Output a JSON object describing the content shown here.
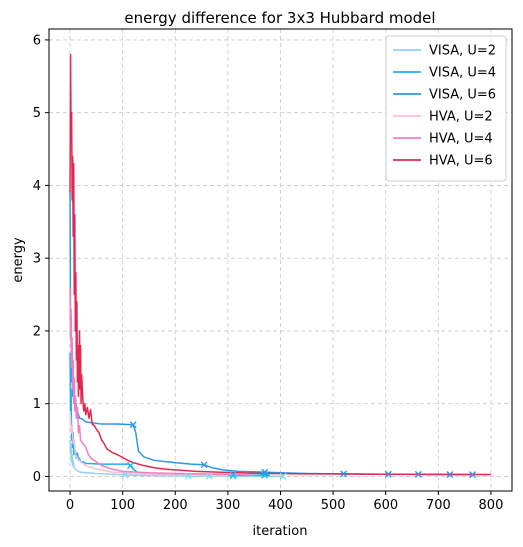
{
  "chart_data": {
    "type": "line",
    "title": "energy difference for 3x3 Hubbard model",
    "xlabel": "iteration",
    "ylabel": "energy",
    "xlim": [
      -40,
      840
    ],
    "ylim": [
      -0.2,
      6.15
    ],
    "xticks": [
      0,
      100,
      200,
      300,
      400,
      500,
      600,
      700,
      800
    ],
    "yticks": [
      0,
      1,
      2,
      3,
      4,
      5,
      6
    ],
    "grid": true,
    "legend_position": "top-right",
    "series": [
      {
        "name": "VISA, U=2",
        "color": "#8fd3f2",
        "points": [
          [
            0,
            0.5
          ],
          [
            1,
            0.3
          ],
          [
            2,
            0.45
          ],
          [
            3,
            0.2
          ],
          [
            4,
            0.3
          ],
          [
            5,
            0.15
          ],
          [
            6,
            0.22
          ],
          [
            8,
            0.12
          ],
          [
            10,
            0.1
          ],
          [
            15,
            0.07
          ],
          [
            20,
            0.06
          ],
          [
            30,
            0.05
          ],
          [
            50,
            0.04
          ],
          [
            80,
            0.03
          ],
          [
            105,
            0.02
          ],
          [
            130,
            0.015
          ],
          [
            180,
            0.01
          ],
          [
            225,
            0.005
          ],
          [
            265,
            0.004
          ],
          [
            310,
            0.003
          ],
          [
            405,
            0.002
          ]
        ],
        "markers": [
          [
            105,
            0.02
          ],
          [
            225,
            0.005
          ],
          [
            265,
            0.004
          ],
          [
            310,
            0.003
          ],
          [
            405,
            0.002
          ]
        ]
      },
      {
        "name": "VISA, U=4",
        "color": "#1fb0f2",
        "points": [
          [
            0,
            1.7
          ],
          [
            1,
            0.8
          ],
          [
            2,
            1.2
          ],
          [
            3,
            0.5
          ],
          [
            4,
            0.7
          ],
          [
            5,
            0.4
          ],
          [
            6,
            0.6
          ],
          [
            7,
            0.3
          ],
          [
            8,
            0.45
          ],
          [
            9,
            0.3
          ],
          [
            10,
            0.35
          ],
          [
            12,
            0.25
          ],
          [
            14,
            0.32
          ],
          [
            16,
            0.22
          ],
          [
            18,
            0.25
          ],
          [
            20,
            0.2
          ],
          [
            25,
            0.2
          ],
          [
            30,
            0.18
          ],
          [
            60,
            0.17
          ],
          [
            110,
            0.17
          ],
          [
            115,
            0.15
          ],
          [
            120,
            0.1
          ],
          [
            130,
            0.05
          ],
          [
            160,
            0.035
          ],
          [
            200,
            0.03
          ],
          [
            250,
            0.025
          ],
          [
            310,
            0.02
          ],
          [
            370,
            0.018
          ],
          [
            380,
            0.015
          ]
        ],
        "markers": [
          [
            115,
            0.15
          ],
          [
            310,
            0.02
          ],
          [
            370,
            0.018
          ]
        ]
      },
      {
        "name": "VISA, U=6",
        "color": "#2f96e8",
        "points": [
          [
            0,
            3.9
          ],
          [
            1,
            1.9
          ],
          [
            2,
            2.2
          ],
          [
            3,
            1.3
          ],
          [
            4,
            1.5
          ],
          [
            5,
            1.1
          ],
          [
            6,
            1.2
          ],
          [
            7,
            1.05
          ],
          [
            8,
            1.15
          ],
          [
            9,
            1.0
          ],
          [
            10,
            1.1
          ],
          [
            12,
            0.95
          ],
          [
            14,
            0.9
          ],
          [
            16,
            0.85
          ],
          [
            18,
            0.8
          ],
          [
            20,
            0.8
          ],
          [
            25,
            0.78
          ],
          [
            30,
            0.75
          ],
          [
            40,
            0.74
          ],
          [
            60,
            0.72
          ],
          [
            90,
            0.72
          ],
          [
            120,
            0.71
          ],
          [
            125,
            0.6
          ],
          [
            130,
            0.35
          ],
          [
            140,
            0.27
          ],
          [
            160,
            0.22
          ],
          [
            200,
            0.19
          ],
          [
            230,
            0.17
          ],
          [
            255,
            0.16
          ],
          [
            270,
            0.12
          ],
          [
            290,
            0.09
          ],
          [
            320,
            0.07
          ],
          [
            370,
            0.06
          ],
          [
            400,
            0.05
          ],
          [
            450,
            0.04
          ],
          [
            520,
            0.035
          ],
          [
            600,
            0.03
          ],
          [
            660,
            0.028
          ],
          [
            720,
            0.026
          ],
          [
            765,
            0.025
          ]
        ],
        "markers": [
          [
            120,
            0.71
          ],
          [
            255,
            0.16
          ],
          [
            370,
            0.06
          ],
          [
            520,
            0.035
          ],
          [
            605,
            0.03
          ],
          [
            662,
            0.028
          ],
          [
            722,
            0.026
          ],
          [
            765,
            0.025
          ]
        ]
      },
      {
        "name": "HVA, U=2",
        "color": "#f9c0cf",
        "points": [
          [
            0,
            0.9
          ],
          [
            2,
            0.6
          ],
          [
            4,
            0.7
          ],
          [
            6,
            0.45
          ],
          [
            8,
            0.5
          ],
          [
            10,
            0.3
          ],
          [
            14,
            0.25
          ],
          [
            20,
            0.2
          ],
          [
            30,
            0.15
          ],
          [
            50,
            0.1
          ],
          [
            80,
            0.06
          ],
          [
            120,
            0.04
          ],
          [
            160,
            0.03
          ],
          [
            200,
            0.02
          ],
          [
            260,
            0.015
          ],
          [
            300,
            0.01
          ]
        ],
        "markers": []
      },
      {
        "name": "HVA, U=4",
        "color": "#f27fc2",
        "points": [
          [
            0,
            2.6
          ],
          [
            1,
            1.9
          ],
          [
            2,
            2.3
          ],
          [
            3,
            1.5
          ],
          [
            4,
            1.9
          ],
          [
            5,
            1.2
          ],
          [
            6,
            1.6
          ],
          [
            7,
            1.0
          ],
          [
            8,
            1.35
          ],
          [
            9,
            0.9
          ],
          [
            10,
            1.1
          ],
          [
            12,
            0.8
          ],
          [
            14,
            0.95
          ],
          [
            16,
            0.6
          ],
          [
            18,
            0.7
          ],
          [
            20,
            0.5
          ],
          [
            25,
            0.45
          ],
          [
            30,
            0.4
          ],
          [
            35,
            0.3
          ],
          [
            40,
            0.25
          ],
          [
            50,
            0.2
          ],
          [
            60,
            0.15
          ],
          [
            80,
            0.1
          ],
          [
            100,
            0.07
          ],
          [
            150,
            0.05
          ],
          [
            200,
            0.04
          ],
          [
            300,
            0.03
          ],
          [
            350,
            0.02
          ]
        ],
        "markers": []
      },
      {
        "name": "HVA, U=6",
        "color": "#e0294f",
        "points": [
          [
            0,
            3.9
          ],
          [
            1,
            5.8
          ],
          [
            2,
            4.6
          ],
          [
            3,
            5.0
          ],
          [
            4,
            3.8
          ],
          [
            5,
            4.4
          ],
          [
            6,
            3.3
          ],
          [
            7,
            4.3
          ],
          [
            8,
            2.5
          ],
          [
            9,
            3.6
          ],
          [
            10,
            2.0
          ],
          [
            11,
            2.8
          ],
          [
            12,
            1.6
          ],
          [
            13,
            2.4
          ],
          [
            14,
            1.3
          ],
          [
            15,
            1.8
          ],
          [
            16,
            1.1
          ],
          [
            17,
            1.5
          ],
          [
            18,
            2.0
          ],
          [
            19,
            1.2
          ],
          [
            20,
            1.8
          ],
          [
            21,
            1.0
          ],
          [
            22,
            1.4
          ],
          [
            24,
            1.1
          ],
          [
            26,
            0.9
          ],
          [
            28,
            1.0
          ],
          [
            30,
            0.85
          ],
          [
            33,
            0.95
          ],
          [
            36,
            0.8
          ],
          [
            39,
            0.92
          ],
          [
            42,
            0.72
          ],
          [
            46,
            0.7
          ],
          [
            50,
            0.65
          ],
          [
            55,
            0.6
          ],
          [
            60,
            0.5
          ],
          [
            65,
            0.45
          ],
          [
            70,
            0.38
          ],
          [
            80,
            0.33
          ],
          [
            90,
            0.3
          ],
          [
            100,
            0.26
          ],
          [
            110,
            0.22
          ],
          [
            120,
            0.19
          ],
          [
            140,
            0.15
          ],
          [
            160,
            0.12
          ],
          [
            180,
            0.1
          ],
          [
            200,
            0.09
          ],
          [
            240,
            0.07
          ],
          [
            280,
            0.06
          ],
          [
            320,
            0.05
          ],
          [
            380,
            0.04
          ],
          [
            450,
            0.035
          ],
          [
            520,
            0.033
          ],
          [
            600,
            0.03
          ],
          [
            700,
            0.028
          ],
          [
            800,
            0.027
          ]
        ],
        "markers": []
      }
    ]
  }
}
